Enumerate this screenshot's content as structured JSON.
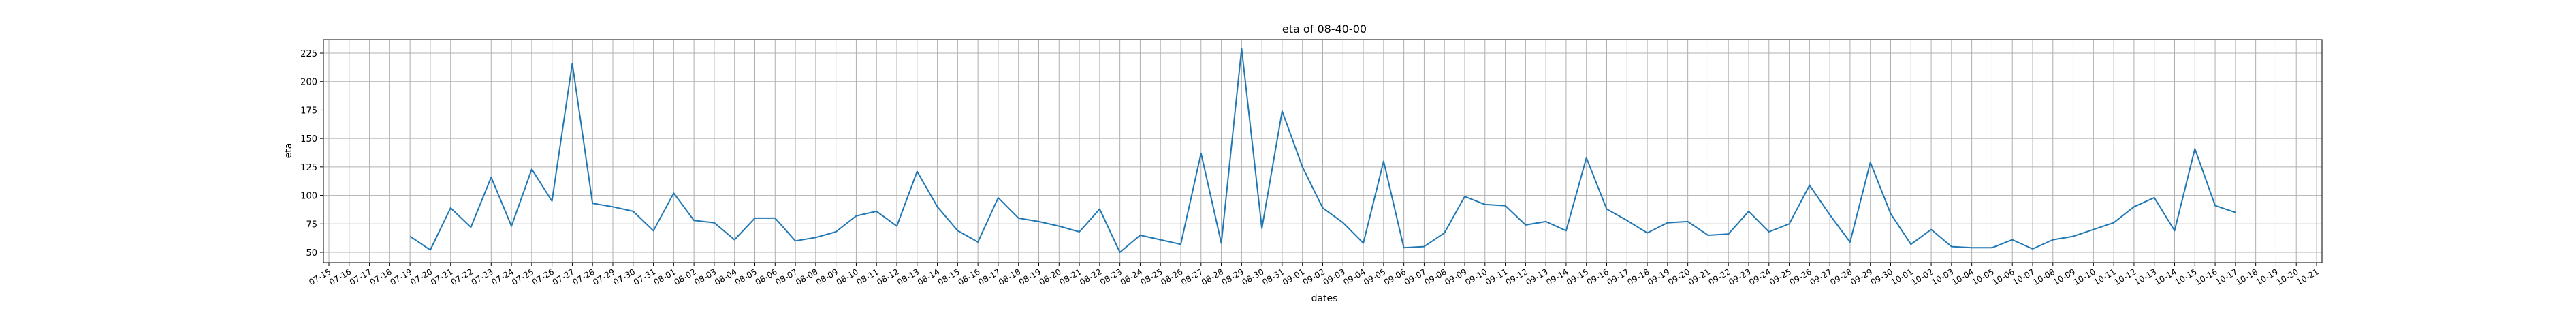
{
  "chart_data": {
    "type": "line",
    "title": "eta of 08-40-00",
    "xlabel": "dates",
    "ylabel": "eta",
    "grid": true,
    "line_color": "#1f77b4",
    "x_ticks": [
      "07-15",
      "07-16",
      "07-17",
      "07-18",
      "07-19",
      "07-20",
      "07-21",
      "07-22",
      "07-23",
      "07-24",
      "07-25",
      "07-26",
      "07-27",
      "07-28",
      "07-29",
      "07-30",
      "07-31",
      "08-01",
      "08-02",
      "08-03",
      "08-04",
      "08-05",
      "08-06",
      "08-07",
      "08-08",
      "08-09",
      "08-10",
      "08-11",
      "08-12",
      "08-13",
      "08-14",
      "08-15",
      "08-16",
      "08-17",
      "08-18",
      "08-19",
      "08-20",
      "08-21",
      "08-22",
      "08-23",
      "08-24",
      "08-25",
      "08-26",
      "08-27",
      "08-28",
      "08-29",
      "08-30",
      "08-31",
      "09-01",
      "09-02",
      "09-03",
      "09-04",
      "09-05",
      "09-06",
      "09-07",
      "09-08",
      "09-09",
      "09-10",
      "09-11",
      "09-12",
      "09-13",
      "09-14",
      "09-15",
      "09-16",
      "09-17",
      "09-18",
      "09-19",
      "09-20",
      "09-21",
      "09-22",
      "09-23",
      "09-24",
      "09-25",
      "09-26",
      "09-27",
      "09-28",
      "09-29",
      "09-30",
      "10-01",
      "10-02",
      "10-03",
      "10-04",
      "10-05",
      "10-06",
      "10-07",
      "10-08",
      "10-09",
      "10-10",
      "10-11",
      "10-12",
      "10-13",
      "10-14",
      "10-15",
      "10-16",
      "10-17",
      "10-18",
      "10-19",
      "10-20",
      "10-21"
    ],
    "y_ticks": [
      50,
      75,
      100,
      125,
      150,
      175,
      200,
      225
    ],
    "ylim": [
      41,
      237
    ],
    "series": [
      {
        "x": [
          "07-19",
          "07-20",
          "07-21",
          "07-22",
          "07-23",
          "07-24",
          "07-25",
          "07-26",
          "07-27",
          "07-28",
          "07-29",
          "07-30",
          "07-31",
          "08-01",
          "08-02",
          "08-03",
          "08-04",
          "08-05",
          "08-06",
          "08-07",
          "08-08",
          "08-09",
          "08-10",
          "08-11",
          "08-12",
          "08-13",
          "08-14",
          "08-15",
          "08-16",
          "08-17",
          "08-18",
          "08-19",
          "08-20",
          "08-21",
          "08-22",
          "08-23",
          "08-24",
          "08-25",
          "08-26",
          "08-27",
          "08-28",
          "08-29",
          "08-30",
          "08-31",
          "09-01",
          "09-02",
          "09-03",
          "09-04",
          "09-05",
          "09-06",
          "09-07",
          "09-08",
          "09-09",
          "09-10",
          "09-11",
          "09-12",
          "09-13",
          "09-14",
          "09-15",
          "09-16",
          "09-17",
          "09-18",
          "09-19",
          "09-20",
          "09-21",
          "09-22",
          "09-23",
          "09-24",
          "09-25",
          "09-26",
          "09-27",
          "09-28",
          "09-29",
          "09-30",
          "10-01",
          "10-02",
          "10-03",
          "10-04",
          "10-05",
          "10-06",
          "10-07",
          "10-08",
          "10-09",
          "10-10",
          "10-11",
          "10-12",
          "10-13",
          "10-14",
          "10-15",
          "10-16",
          "10-17"
        ],
        "values": [
          64,
          52,
          89,
          72,
          116,
          73,
          123,
          95,
          216,
          93,
          90,
          86,
          69,
          102,
          78,
          76,
          61,
          80,
          80,
          60,
          63,
          68,
          82,
          86,
          73,
          121,
          90,
          69,
          59,
          98,
          80,
          77,
          73,
          68,
          88,
          50,
          65,
          61,
          57,
          137,
          58,
          229,
          71,
          174,
          125,
          89,
          76,
          58,
          130,
          54,
          55,
          67,
          99,
          92,
          91,
          74,
          77,
          69,
          133,
          88,
          78,
          67,
          76,
          77,
          65,
          66,
          86,
          68,
          75,
          109,
          83,
          59,
          129,
          84,
          57,
          70,
          55,
          54,
          54,
          61,
          53,
          61,
          64,
          70,
          76,
          90,
          98,
          69,
          141,
          91,
          85
        ]
      }
    ]
  }
}
